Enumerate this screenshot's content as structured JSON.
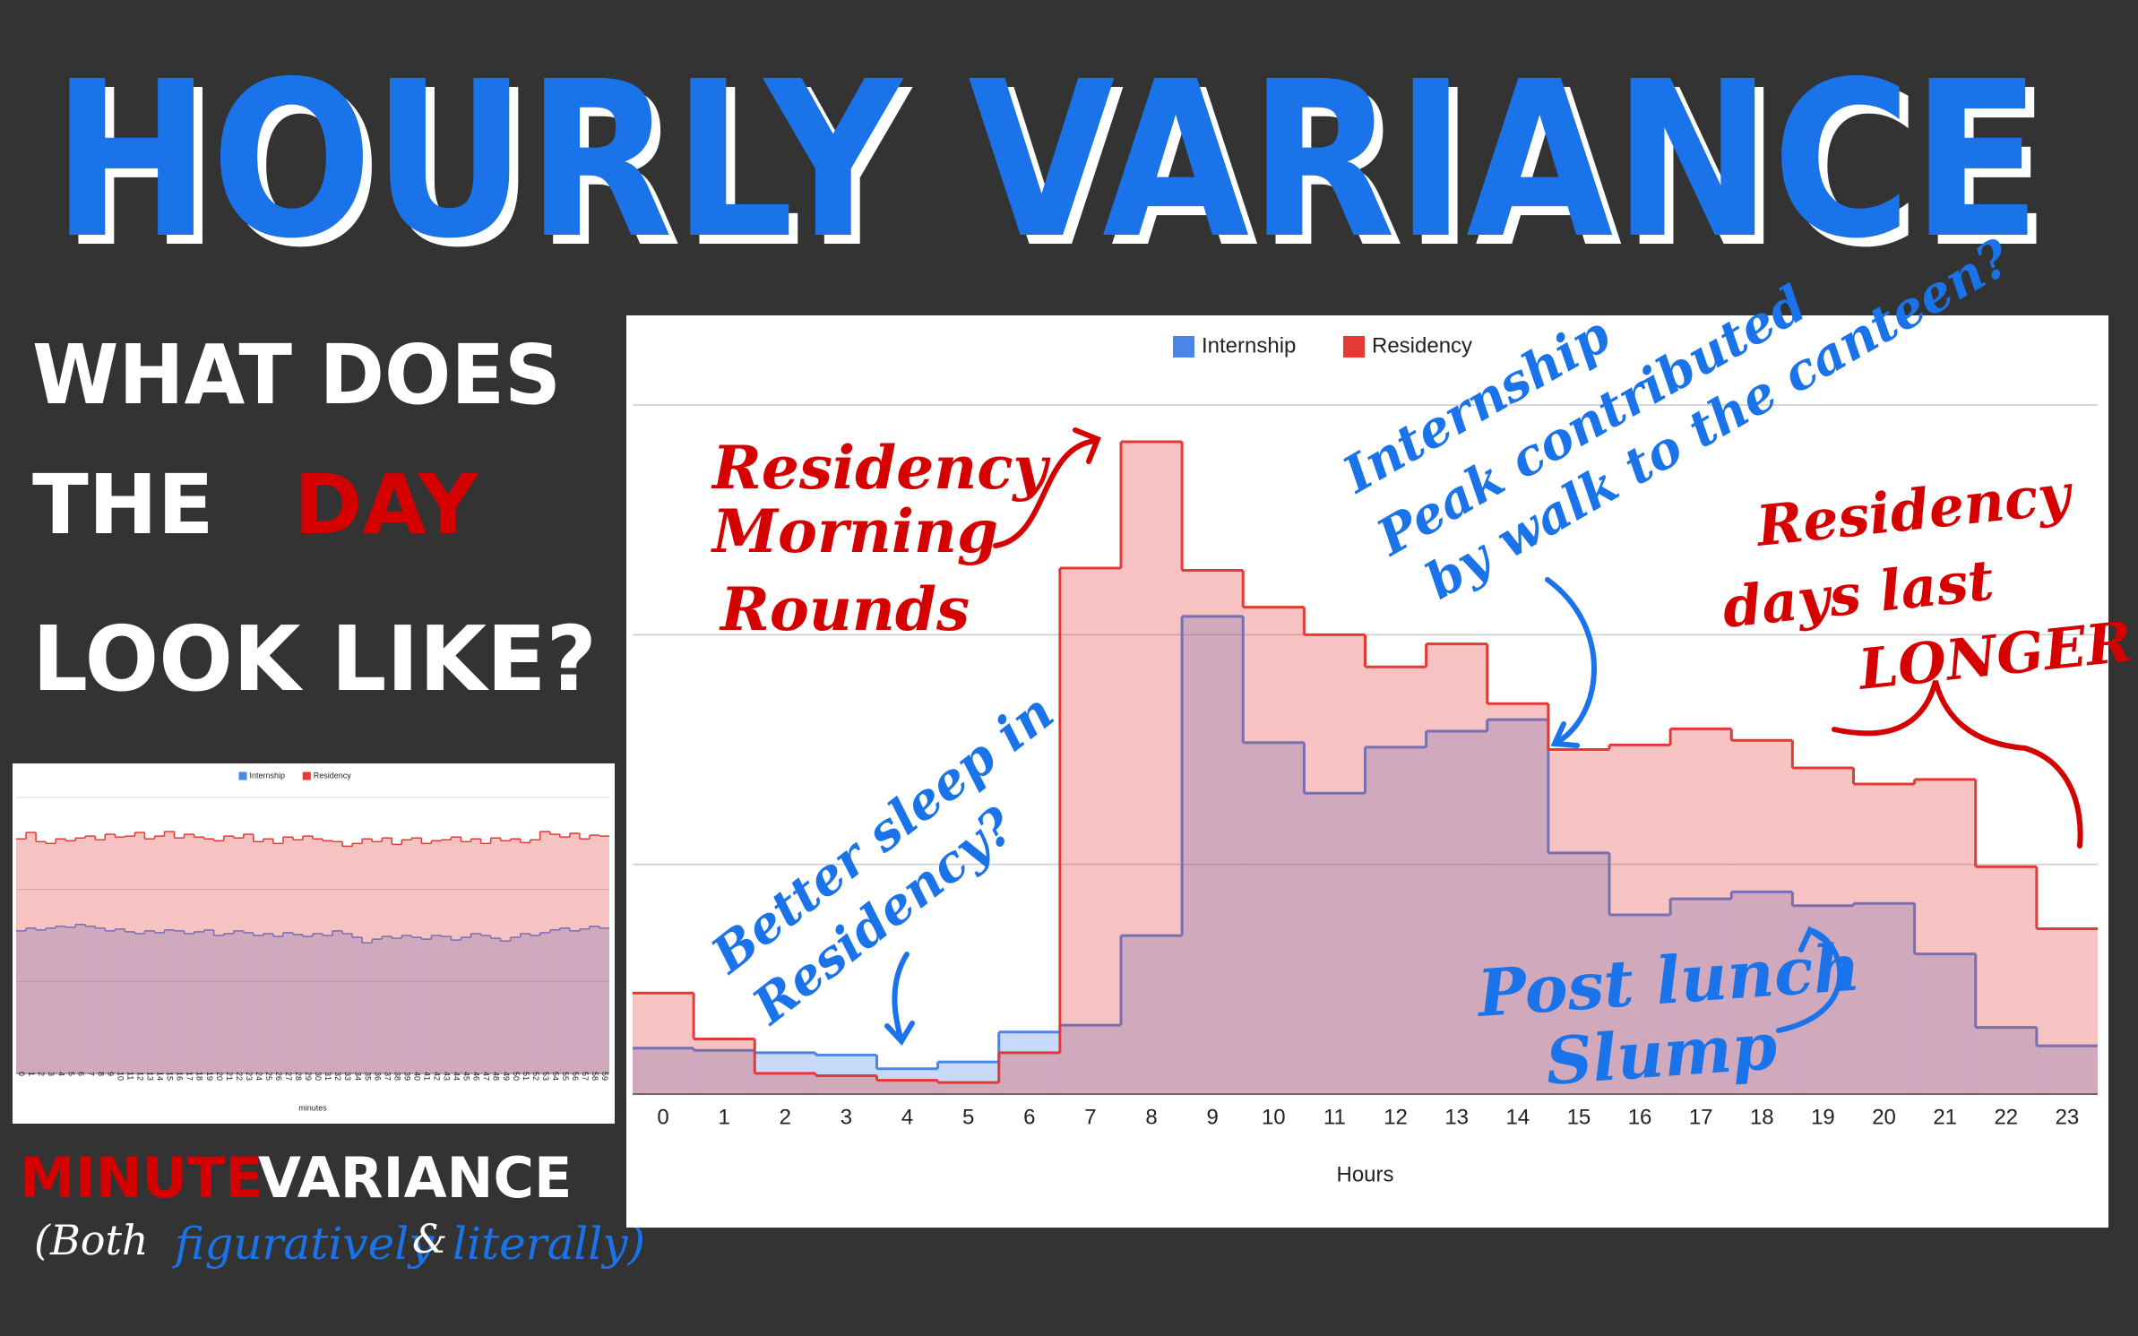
{
  "slide": {
    "title": "HOURLY VARIANCE",
    "question": [
      "WHAT DOES",
      "THE",
      "DAY",
      "LOOK LIKE?"
    ],
    "caption": [
      "MINUTE",
      "VARIANCE"
    ],
    "subcaption": [
      "(Both",
      "figuratively",
      "&",
      "literally)"
    ]
  },
  "chart_data": [
    {
      "type": "step_area",
      "x_label": "Hours",
      "categories": [
        0,
        1,
        2,
        3,
        4,
        5,
        6,
        7,
        8,
        9,
        10,
        11,
        12,
        13,
        14,
        15,
        16,
        17,
        18,
        19,
        20,
        21,
        22,
        23
      ],
      "series": [
        {
          "name": "Internship",
          "color": "#4a86e8",
          "values": [
            0.2,
            0.19,
            0.18,
            0.17,
            0.11,
            0.14,
            0.27,
            0.3,
            0.69,
            2.08,
            1.53,
            1.31,
            1.51,
            1.58,
            1.63,
            1.05,
            0.78,
            0.85,
            0.88,
            0.82,
            0.83,
            0.61,
            0.29,
            0.21
          ]
        },
        {
          "name": "Residency",
          "color": "#e53935",
          "values": [
            0.44,
            0.24,
            0.09,
            0.08,
            0.06,
            0.05,
            0.18,
            2.29,
            2.84,
            2.28,
            2.12,
            2.0,
            1.86,
            1.96,
            1.7,
            1.5,
            1.52,
            1.59,
            1.54,
            1.42,
            1.35,
            1.37,
            0.99,
            0.72
          ]
        }
      ],
      "ylim": [
        0,
        3
      ],
      "yticks": [
        0,
        1,
        2,
        3
      ],
      "grid": true,
      "legend": "top",
      "annotations": [
        {
          "lines": [
            "Residency",
            "Morning",
            "Rounds"
          ],
          "color": "#d50000"
        },
        {
          "lines": [
            "Internship",
            "Peak contributed",
            "by walk to the canteen?"
          ],
          "color": "#1a73e8"
        },
        {
          "lines": [
            "Residency",
            "days last",
            "LONGER"
          ],
          "color": "#d50000"
        },
        {
          "lines": [
            "Better sleep in",
            "Residency?"
          ],
          "color": "#1a73e8"
        },
        {
          "lines": [
            "Post lunch",
            "Slump"
          ],
          "color": "#1a73e8"
        }
      ]
    },
    {
      "type": "step_area",
      "x_label": "minutes",
      "categories": [
        0,
        1,
        2,
        3,
        4,
        5,
        6,
        7,
        8,
        9,
        10,
        11,
        12,
        13,
        14,
        15,
        16,
        17,
        18,
        19,
        20,
        21,
        22,
        23,
        24,
        25,
        26,
        27,
        28,
        29,
        30,
        31,
        32,
        33,
        34,
        35,
        36,
        37,
        38,
        39,
        40,
        41,
        42,
        43,
        44,
        45,
        46,
        47,
        48,
        49,
        50,
        51,
        52,
        53,
        54,
        55,
        56,
        57,
        58,
        59
      ],
      "series": [
        {
          "name": "Internship",
          "color": "#4a86e8",
          "values": [
            1.55,
            1.58,
            1.56,
            1.58,
            1.6,
            1.59,
            1.62,
            1.6,
            1.58,
            1.55,
            1.57,
            1.54,
            1.52,
            1.55,
            1.53,
            1.56,
            1.55,
            1.52,
            1.54,
            1.56,
            1.5,
            1.52,
            1.55,
            1.53,
            1.5,
            1.52,
            1.49,
            1.53,
            1.51,
            1.49,
            1.52,
            1.5,
            1.55,
            1.52,
            1.48,
            1.42,
            1.46,
            1.49,
            1.47,
            1.5,
            1.48,
            1.46,
            1.5,
            1.49,
            1.45,
            1.48,
            1.52,
            1.5,
            1.47,
            1.44,
            1.48,
            1.52,
            1.5,
            1.53,
            1.56,
            1.58,
            1.55,
            1.57,
            1.6,
            1.58
          ]
        },
        {
          "name": "Residency",
          "color": "#e53935",
          "values": [
            2.55,
            2.62,
            2.52,
            2.5,
            2.55,
            2.53,
            2.56,
            2.58,
            2.54,
            2.6,
            2.57,
            2.58,
            2.62,
            2.55,
            2.58,
            2.63,
            2.56,
            2.6,
            2.57,
            2.55,
            2.53,
            2.58,
            2.56,
            2.6,
            2.52,
            2.55,
            2.5,
            2.57,
            2.54,
            2.58,
            2.55,
            2.53,
            2.52,
            2.47,
            2.5,
            2.55,
            2.52,
            2.56,
            2.49,
            2.54,
            2.56,
            2.5,
            2.53,
            2.54,
            2.57,
            2.52,
            2.55,
            2.5,
            2.56,
            2.53,
            2.55,
            2.51,
            2.54,
            2.63,
            2.6,
            2.57,
            2.61,
            2.55,
            2.59,
            2.58
          ]
        }
      ],
      "ylim": [
        0,
        3
      ],
      "yticks": [
        0,
        1,
        2,
        3
      ],
      "grid": true,
      "legend": "top"
    }
  ]
}
